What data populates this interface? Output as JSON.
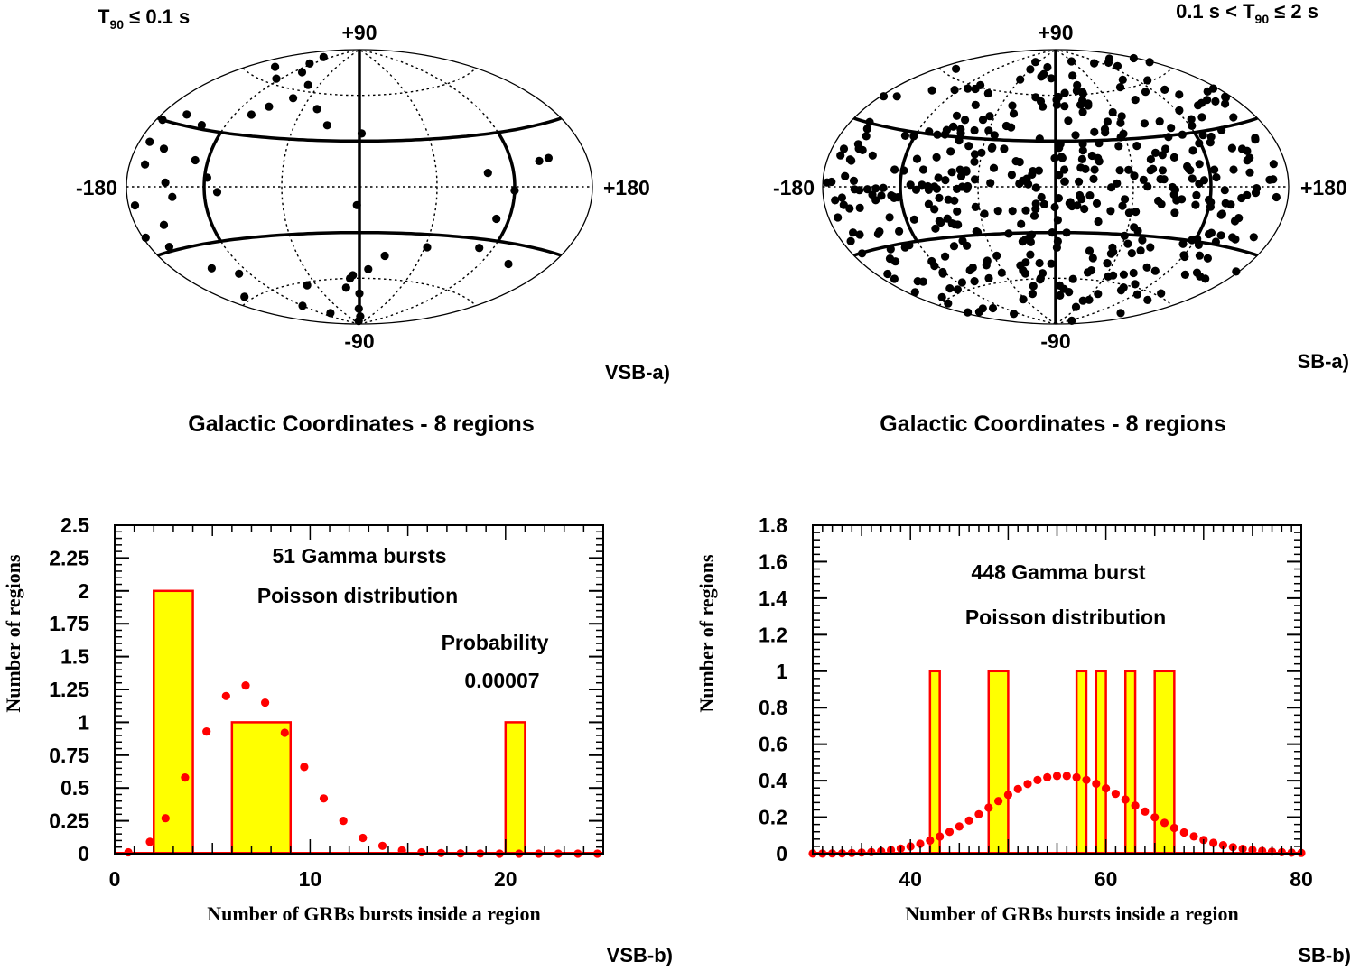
{
  "colors": {
    "ink": "#000000",
    "bar_fill": "#ffff00",
    "bar_edge": "#ff0000",
    "poisson": "#ff0000"
  },
  "chart_data": [
    {
      "id": "vsb-a",
      "type": "scatter",
      "projection": "aitoff-galactic",
      "panel_label": "VSB-a)",
      "header": {
        "prefix": "T",
        "sub": "90",
        "suffix": " ≤ 0.1 s"
      },
      "caption": "Galactic Coordinates - 8 regions",
      "axis_labels": {
        "top": "+90",
        "bottom": "-90",
        "left": "-180",
        "right": "+180"
      },
      "band_lat": 30,
      "band_lon": 120,
      "points_lon_lat": [
        [
          -155,
          67
        ],
        [
          -125,
          63
        ],
        [
          -105,
          42
        ],
        [
          -160,
          35
        ],
        [
          -140,
          32
        ],
        [
          -95,
          48
        ],
        [
          -78,
          55
        ],
        [
          -175,
          30
        ],
        [
          -172,
          20
        ],
        [
          -168,
          10
        ],
        [
          -158,
          18
        ],
        [
          -150,
          2
        ],
        [
          -145,
          -5
        ],
        [
          -158,
          -18
        ],
        [
          -165,
          -28
        ],
        [
          -175,
          -8
        ],
        [
          -178,
          -22
        ],
        [
          -130,
          14
        ],
        [
          -118,
          5
        ],
        [
          -110,
          -3
        ],
        [
          -148,
          -42
        ],
        [
          -130,
          -48
        ],
        [
          142,
          13
        ],
        [
          150,
          14
        ],
        [
          120,
          -2
        ],
        [
          110,
          -18
        ],
        [
          108,
          -35
        ],
        [
          62,
          -38
        ],
        [
          25,
          -45
        ],
        [
          0,
          -70
        ],
        [
          -2,
          -80
        ],
        [
          5,
          -85
        ],
        [
          -10,
          -88
        ],
        [
          -20,
          -66
        ],
        [
          -8,
          -58
        ],
        [
          10,
          -54
        ],
        [
          -12,
          -60
        ],
        [
          2,
          35
        ],
        [
          -30,
          40
        ],
        [
          -45,
          50
        ],
        [
          -75,
          64
        ],
        [
          -108,
          70
        ],
        [
          -125,
          75
        ],
        [
          -135,
          80
        ],
        [
          -2,
          -12
        ],
        [
          -72,
          -62
        ],
        [
          -160,
          -58
        ],
        [
          -120,
          -72
        ],
        [
          -100,
          -80
        ],
        [
          100,
          8
        ],
        [
          145,
          -40
        ]
      ]
    },
    {
      "id": "sb-a",
      "type": "scatter",
      "projection": "aitoff-galactic",
      "panel_label": "SB-a)",
      "header": {
        "prefix": "0.1 s < T",
        "sub": "90",
        "suffix": " ≤ 2 s"
      },
      "caption": "Galactic Coordinates - 8 regions",
      "axis_labels": {
        "top": "+90",
        "bottom": "-90",
        "left": "-180",
        "right": "+180"
      },
      "band_lat": 30,
      "band_lon": 120,
      "n_points": 448
    },
    {
      "id": "vsb-b",
      "type": "bar",
      "panel_label": "VSB-b)",
      "xlabel": "Number of GRBs bursts inside a region",
      "ylabel": "Number of regions",
      "xlim": [
        0,
        25
      ],
      "ylim": [
        0,
        2.5
      ],
      "xticks": [
        0,
        10,
        20
      ],
      "yticks": [
        0,
        0.25,
        0.5,
        0.75,
        1,
        1.25,
        1.5,
        1.75,
        2,
        2.25,
        2.5
      ],
      "ytick_labels": [
        "0",
        "0.25",
        "0.5",
        "0.75",
        "1",
        "1.25",
        "1.5",
        "1.75",
        "2",
        "2.25",
        "2.5"
      ],
      "bars": [
        {
          "x0": 2,
          "x1": 4,
          "value": 2
        },
        {
          "x0": 6,
          "x1": 9,
          "value": 1
        },
        {
          "x0": 20,
          "x1": 21,
          "value": 1
        }
      ],
      "poisson_x": [
        0.7,
        1.8,
        2.6,
        3.6,
        4.7,
        5.7,
        6.7,
        7.7,
        8.7,
        9.7,
        10.7,
        11.7,
        12.7,
        13.7,
        14.7,
        15.7,
        16.7,
        17.7,
        18.7,
        19.7,
        20.7,
        21.7,
        22.7,
        23.7,
        24.7
      ],
      "poisson_y": [
        0.01,
        0.09,
        0.27,
        0.58,
        0.93,
        1.2,
        1.28,
        1.15,
        0.92,
        0.66,
        0.42,
        0.25,
        0.12,
        0.06,
        0.025,
        0.01,
        0.005,
        0.002,
        0.001,
        0,
        0,
        0,
        0,
        0,
        0
      ],
      "annotations": [
        "51 Gamma bursts",
        "Poisson distribution",
        "Probability",
        "0.00007"
      ]
    },
    {
      "id": "sb-b",
      "type": "bar",
      "panel_label": "SB-b)",
      "xlabel": "Number of GRBs bursts inside a region",
      "ylabel": "Number of regions",
      "xlim": [
        30,
        80
      ],
      "ylim": [
        0,
        1.8
      ],
      "xticks": [
        40,
        60,
        80
      ],
      "yticks": [
        0,
        0.2,
        0.4,
        0.6,
        0.8,
        1,
        1.2,
        1.4,
        1.6,
        1.8
      ],
      "ytick_labels": [
        "0",
        "0.2",
        "0.4",
        "0.6",
        "0.8",
        "1",
        "1.2",
        "1.4",
        "1.6",
        "1.8"
      ],
      "bars": [
        {
          "x0": 42,
          "x1": 43,
          "value": 1
        },
        {
          "x0": 48,
          "x1": 50,
          "value": 1
        },
        {
          "x0": 57,
          "x1": 58,
          "value": 1
        },
        {
          "x0": 59,
          "x1": 60,
          "value": 1
        },
        {
          "x0": 62,
          "x1": 63,
          "value": 1
        },
        {
          "x0": 65,
          "x1": 67,
          "value": 1
        }
      ],
      "poisson_mean": 56,
      "poisson_scale": 8,
      "poisson_range": [
        30,
        80
      ],
      "annotations": [
        "448 Gamma burst",
        "Poisson distribution"
      ]
    }
  ]
}
